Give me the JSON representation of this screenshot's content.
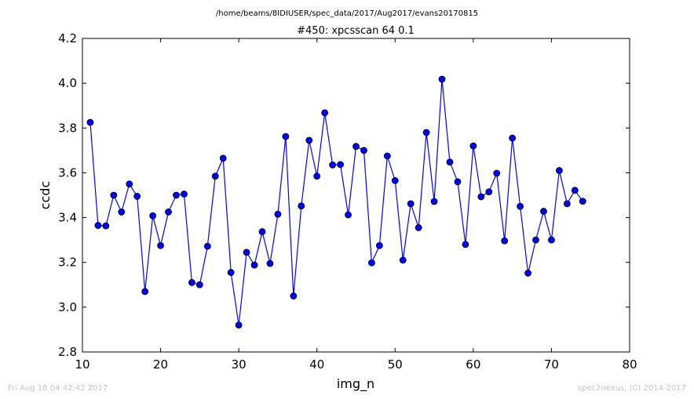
{
  "header": {
    "path": "/home/beams/8IDIUSER/spec_data/2017/Aug2017/evans20170815"
  },
  "footer": {
    "timestamp": "Fri Aug 18 04:42:42 2017",
    "credit": "spec2nexus, (C) 2014-2017"
  },
  "chart_data": {
    "type": "line",
    "title": "#450: xpcsscan 64 0.1",
    "xlabel": "img_n",
    "ylabel": "ccdc",
    "xlim": [
      10,
      80
    ],
    "ylim": [
      2.8,
      4.2
    ],
    "xticks": [
      10,
      20,
      30,
      40,
      50,
      60,
      70,
      80
    ],
    "yticks": [
      2.8,
      3.0,
      3.2,
      3.4,
      3.6,
      3.8,
      4.0,
      4.2
    ],
    "grid": false,
    "marker": "circle",
    "color": "#0000ff",
    "series": [
      {
        "x": [
          11,
          12,
          13,
          14,
          15,
          16,
          17,
          18,
          19,
          20,
          21,
          22,
          23,
          24,
          25,
          26,
          27,
          28,
          29,
          30,
          31,
          32,
          33,
          34,
          35,
          36,
          37,
          38,
          39,
          40,
          41,
          42,
          43,
          44,
          45,
          46,
          47,
          48,
          49,
          50,
          51,
          52,
          53,
          54,
          55,
          56,
          57,
          58,
          59,
          60,
          61,
          62,
          63,
          64,
          65,
          66,
          67,
          68,
          69,
          70,
          71,
          72,
          73,
          74
        ],
        "values": [
          3.825,
          3.365,
          3.363,
          3.5,
          3.425,
          3.55,
          3.495,
          3.07,
          3.408,
          3.275,
          3.425,
          3.5,
          3.505,
          3.11,
          3.1,
          3.272,
          3.585,
          3.665,
          3.155,
          2.92,
          3.245,
          3.188,
          3.337,
          3.195,
          3.415,
          3.762,
          3.05,
          3.452,
          3.745,
          3.585,
          3.868,
          3.635,
          3.637,
          3.412,
          3.718,
          3.7,
          3.198,
          3.275,
          3.675,
          3.565,
          3.21,
          3.462,
          3.355,
          3.78,
          3.472,
          4.018,
          3.648,
          3.56,
          3.28,
          3.72,
          3.493,
          3.515,
          3.598,
          3.296,
          3.755,
          3.45,
          3.152,
          3.3,
          3.428,
          3.3,
          3.61,
          3.462,
          3.522,
          3.473
        ]
      }
    ]
  }
}
